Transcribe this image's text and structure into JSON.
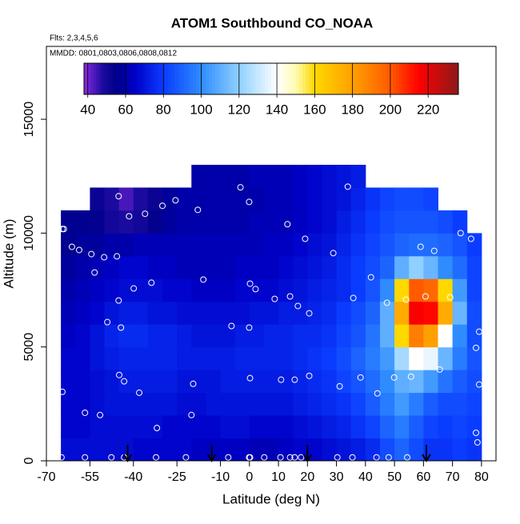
{
  "chart_data": {
    "type": "heatmap",
    "title": "ATOM1 Southbound CO_NOAA",
    "subtitle": "Flts: 2,3,4,5,6",
    "annotation": "MMDD: 0801,0803,0806,0808,0812",
    "x_label": "Latitude (deg N)",
    "y_label": "Altitude (m)",
    "xlim": [
      -70,
      85
    ],
    "ylim": [
      0,
      18200
    ],
    "xticks": [
      -70,
      -55,
      -40,
      -25,
      -10,
      0,
      10,
      20,
      30,
      40,
      50,
      60,
      70,
      80
    ],
    "yticks": [
      0,
      5000,
      10000,
      15000
    ],
    "clim": [
      38,
      236
    ],
    "colorbar_ticks": [
      40,
      60,
      80,
      100,
      120,
      140,
      160,
      180,
      200,
      220
    ],
    "colorscale": [
      [
        38,
        "#8a2be2"
      ],
      [
        48,
        "#1a0a9e"
      ],
      [
        55,
        "#00008b"
      ],
      [
        65,
        "#0000c8"
      ],
      [
        80,
        "#0a3cff"
      ],
      [
        100,
        "#2f8cff"
      ],
      [
        120,
        "#8fd0ff"
      ],
      [
        140,
        "#ffffff"
      ],
      [
        150,
        "#fffbb0"
      ],
      [
        160,
        "#ffd800"
      ],
      [
        180,
        "#ffa000"
      ],
      [
        200,
        "#ff5a00"
      ],
      [
        215,
        "#ff0000"
      ],
      [
        236,
        "#8b1a1a"
      ]
    ],
    "x_edges": [
      -65,
      -60,
      -55,
      -50,
      -45,
      -40,
      -35,
      -30,
      -25,
      -20,
      -15,
      -10,
      -5,
      0,
      5,
      10,
      15,
      20,
      25,
      30,
      35,
      40,
      45,
      50,
      55,
      60,
      65,
      70,
      75,
      80
    ],
    "y_edges": [
      0,
      1000,
      2000,
      3000,
      4000,
      5000,
      6000,
      7000,
      8000,
      9000,
      10000,
      11000,
      12000,
      13000
    ],
    "z": [
      [
        68,
        68,
        68,
        68,
        68,
        66,
        66,
        66,
        66,
        64,
        64,
        64,
        64,
        62,
        62,
        64,
        66,
        66,
        68,
        70,
        72,
        76,
        84,
        90,
        84,
        78,
        78,
        80,
        78
      ],
      [
        66,
        66,
        68,
        68,
        68,
        68,
        68,
        66,
        66,
        66,
        66,
        68,
        68,
        66,
        66,
        66,
        68,
        70,
        72,
        74,
        78,
        82,
        90,
        96,
        88,
        82,
        80,
        82,
        80
      ],
      [
        66,
        66,
        68,
        70,
        70,
        70,
        70,
        70,
        68,
        68,
        70,
        70,
        70,
        70,
        70,
        70,
        72,
        74,
        76,
        78,
        82,
        88,
        96,
        104,
        96,
        88,
        84,
        84,
        82
      ],
      [
        66,
        66,
        68,
        70,
        72,
        72,
        72,
        72,
        70,
        70,
        70,
        72,
        72,
        72,
        72,
        72,
        74,
        76,
        78,
        82,
        86,
        92,
        100,
        110,
        112,
        104,
        94,
        88,
        84
      ],
      [
        66,
        66,
        70,
        72,
        74,
        74,
        74,
        74,
        72,
        72,
        72,
        72,
        74,
        74,
        74,
        74,
        76,
        78,
        80,
        84,
        90,
        96,
        104,
        124,
        140,
        136,
        112,
        96,
        86
      ],
      [
        64,
        66,
        70,
        74,
        76,
        76,
        74,
        74,
        72,
        70,
        70,
        70,
        72,
        72,
        74,
        74,
        76,
        76,
        78,
        82,
        86,
        94,
        110,
        160,
        190,
        180,
        140,
        100,
        84
      ],
      [
        62,
        64,
        66,
        70,
        72,
        72,
        70,
        70,
        68,
        68,
        68,
        68,
        68,
        70,
        70,
        72,
        72,
        74,
        76,
        80,
        84,
        90,
        110,
        176,
        216,
        214,
        176,
        112,
        84
      ],
      [
        60,
        62,
        64,
        66,
        68,
        68,
        68,
        66,
        66,
        64,
        64,
        64,
        66,
        66,
        66,
        68,
        70,
        72,
        74,
        76,
        80,
        86,
        100,
        160,
        200,
        196,
        160,
        104,
        82
      ],
      [
        58,
        60,
        62,
        64,
        66,
        66,
        64,
        64,
        62,
        62,
        62,
        62,
        64,
        64,
        64,
        66,
        68,
        70,
        72,
        76,
        80,
        84,
        90,
        110,
        120,
        112,
        100,
        92,
        82
      ],
      [
        56,
        58,
        58,
        60,
        60,
        62,
        62,
        62,
        62,
        62,
        62,
        62,
        62,
        62,
        64,
        64,
        66,
        68,
        70,
        74,
        78,
        82,
        86,
        90,
        92,
        92,
        90,
        86,
        80
      ],
      [
        56,
        56,
        54,
        50,
        48,
        50,
        54,
        58,
        60,
        60,
        60,
        60,
        60,
        62,
        62,
        62,
        64,
        66,
        68,
        72,
        76,
        80,
        84,
        86,
        86,
        86,
        84,
        80,
        null
      ],
      [
        null,
        null,
        52,
        48,
        44,
        48,
        52,
        58,
        60,
        60,
        60,
        60,
        60,
        60,
        62,
        62,
        64,
        66,
        68,
        70,
        74,
        78,
        82,
        84,
        84,
        82,
        null,
        null,
        null
      ],
      [
        null,
        null,
        null,
        null,
        null,
        null,
        null,
        null,
        null,
        60,
        60,
        60,
        60,
        62,
        62,
        62,
        64,
        66,
        68,
        70,
        72,
        null,
        null,
        null,
        null,
        null,
        null,
        null,
        null
      ]
    ],
    "points": {
      "lat": [
        -64.5,
        -64,
        -64.5,
        -61.2,
        -58.7,
        -56.7,
        -54.5,
        -53.4,
        -51.5,
        -50.1,
        -45.7,
        -45.1,
        -45.1,
        -49,
        -44.3,
        -44.9,
        -43.2,
        -41.5,
        -39.9,
        -36,
        -38,
        -33.8,
        -31.9,
        -30,
        -25.5,
        -20,
        -19.4,
        -17.8,
        -15.9,
        -6.2,
        -3.1,
        -0.1,
        -0.1,
        0.2,
        0.2,
        2.1,
        8.7,
        10.9,
        13.1,
        14,
        15.6,
        16.7,
        19.2,
        20.6,
        20.6,
        28.9,
        31.1,
        33.9,
        35.8,
        38.3,
        41.9,
        44.1,
        47.4,
        49.9,
        54,
        55.7,
        59,
        60.7,
        63.7,
        65.6,
        67.8,
        69.2,
        72.8,
        76.4,
        78.1,
        79.2,
        79.2,
        78.1,
        78.6,
        -64.8,
        -56.7,
        -47.6,
        -43.2,
        -32.2,
        -21.9,
        -7.3,
        -0.1,
        0.2,
        5.1,
        10.7,
        14,
        15.6,
        17.8,
        30.3,
        35.5,
        43.8,
        48,
        54.4
      ],
      "alt": [
        10180,
        10180,
        3030,
        9400,
        9260,
        2110,
        9080,
        8270,
        2010,
        8940,
        8980,
        11620,
        7040,
        6090,
        5850,
        3770,
        3490,
        10740,
        7570,
        10850,
        2990,
        7820,
        1440,
        11200,
        11440,
        2010,
        3380,
        11020,
        7960,
        5920,
        12010,
        11370,
        5850,
        3630,
        7780,
        7540,
        7110,
        3560,
        10390,
        7220,
        3560,
        6800,
        9750,
        6480,
        3730,
        9120,
        3270,
        12040,
        7150,
        3660,
        8060,
        2960,
        6940,
        3660,
        7080,
        3700,
        9400,
        7220,
        9220,
        4010,
        11370,
        7180,
        10000,
        9750,
        4960,
        5670,
        3350,
        1230,
        810,
        150,
        150,
        150,
        150,
        150,
        150,
        150,
        150,
        150,
        150,
        150,
        150,
        150,
        150,
        150,
        150,
        150,
        150,
        150
      ]
    },
    "arrows": [
      -42,
      -13,
      20,
      61
    ]
  }
}
